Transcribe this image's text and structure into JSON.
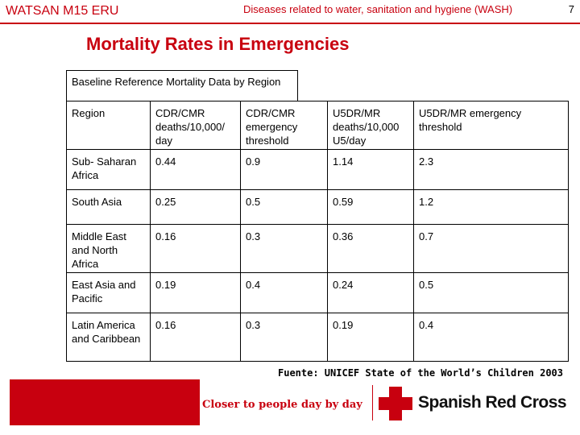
{
  "header": {
    "left": "WATSAN M15 ERU",
    "center": "Diseases related to water, sanitation and hygiene (WASH)",
    "page_number": "7"
  },
  "title": "Mortality Rates in Emergencies",
  "caption": "Baseline Reference Mortality Data by Region",
  "table": {
    "header": [
      "Region",
      "CDR/CMR deaths/10,000/ day",
      "CDR/CMR emergency threshold",
      "U5DR/MR deaths/10,000 U5/day",
      "U5DR/MR emergency threshold"
    ],
    "rows": [
      [
        "Sub- Saharan Africa",
        "0.44",
        "0.9",
        "1.14",
        "2.3"
      ],
      [
        "South Asia",
        "0.25",
        "0.5",
        "0.59",
        "1.2"
      ],
      [
        "Middle East and North Africa",
        "0.16",
        "0.3",
        "0.36",
        "0.7"
      ],
      [
        "East Asia and Pacific",
        "0.19",
        "0.4",
        "0.24",
        "0.5"
      ],
      [
        "Latin America and Caribbean",
        "0.16",
        "0.3",
        "0.19",
        "0.4"
      ]
    ]
  },
  "source": "Fuente: UNICEF State of the World’s Children 2003",
  "footer": {
    "slogan": "Closer to people day by day",
    "brand": "Spanish Red Cross"
  },
  "colors": {
    "accent": "#c8000f"
  }
}
